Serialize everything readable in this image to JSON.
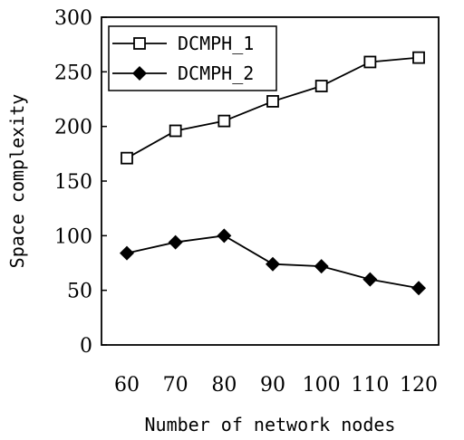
{
  "chart_data": {
    "type": "line",
    "categories": [
      "60",
      "70",
      "80",
      "90",
      "100",
      "110",
      "120"
    ],
    "series": [
      {
        "name": "DCMPH_1",
        "marker": "open-square",
        "color": "#000000",
        "values": [
          171,
          196,
          205,
          223,
          237,
          259,
          263
        ]
      },
      {
        "name": "DCMPH_2",
        "marker": "filled-diamond",
        "color": "#000000",
        "values": [
          84,
          94,
          100,
          74,
          72,
          60,
          52
        ]
      }
    ],
    "yticks": [
      "0",
      "50",
      "100",
      "150",
      "200",
      "250",
      "300"
    ],
    "title": "",
    "xlabel": "Number of network nodes",
    "ylabel": "Space complexity",
    "ylim": [
      0,
      300
    ],
    "grid": false,
    "legend_position": "top-left"
  }
}
